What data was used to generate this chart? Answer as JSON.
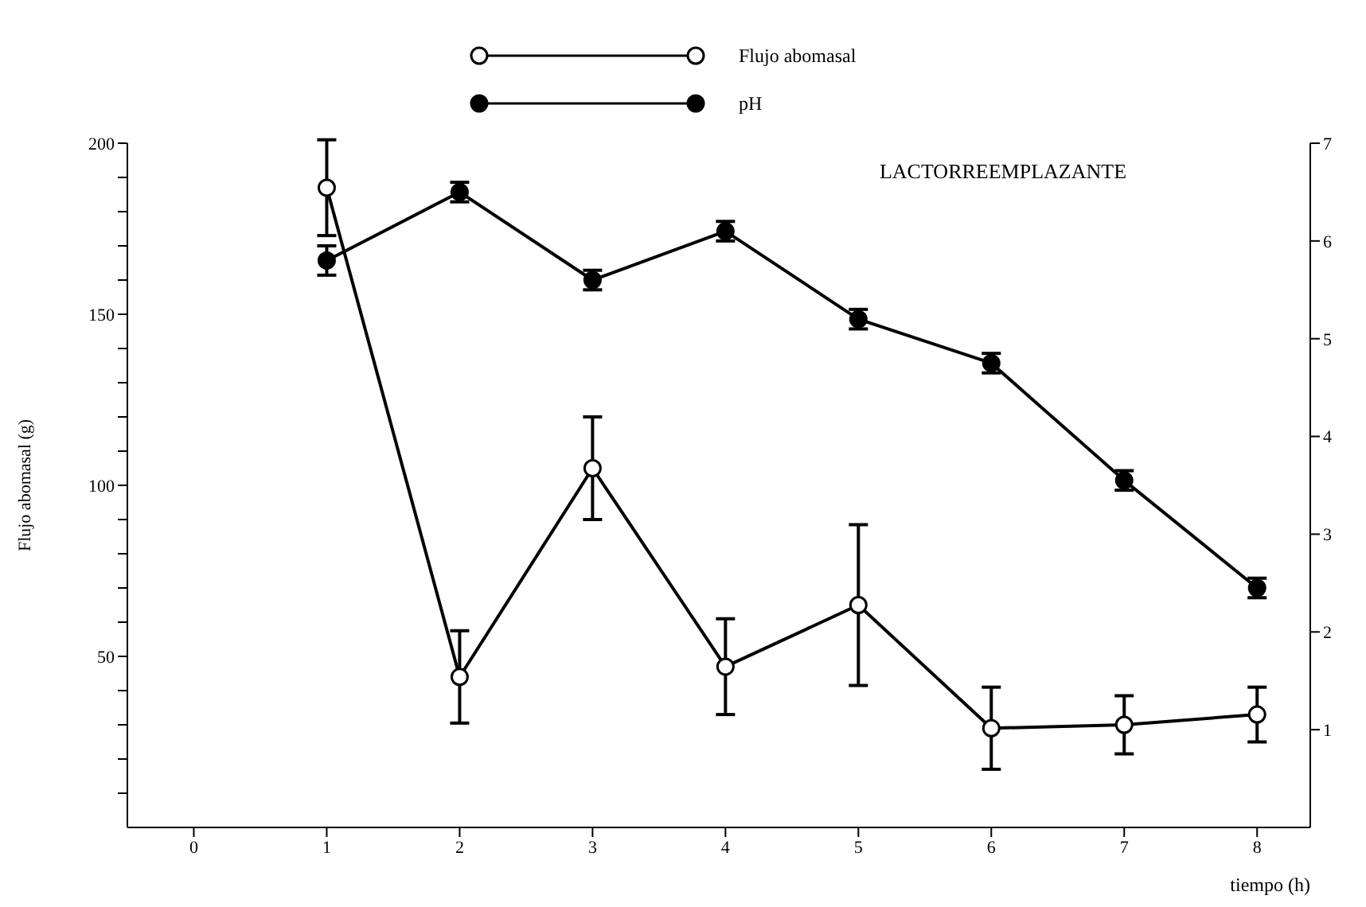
{
  "chart_data": {
    "type": "line",
    "title": "LACTORREEMPLAZANTE",
    "xlabel": "tiempo (h)",
    "ylabel": "Flujo abomasal (g)",
    "x": [
      1,
      2,
      3,
      4,
      5,
      6,
      7,
      8
    ],
    "series": [
      {
        "name": "Flujo abomasal",
        "color": "#000000",
        "values": [
          187,
          44,
          105,
          47,
          65,
          29,
          30,
          33
        ],
        "errors": [
          14,
          13.5,
          15,
          14,
          23.5,
          12,
          8.5,
          8
        ],
        "marker": "circle"
      },
      {
        "name": "pH",
        "color": "#000000",
        "axis": "y2",
        "values": [
          5.8,
          6.5,
          5.6,
          6.1,
          5.2,
          4.75,
          3.55,
          2.45
        ],
        "errors": [
          0.15,
          0.1,
          0.1,
          0.1,
          0.1,
          0.1,
          0.1,
          0.1
        ],
        "marker": "circle"
      }
    ],
    "xlim": [
      -0.5,
      8.4
    ],
    "xticks": [
      0,
      1,
      2,
      3,
      4,
      5,
      6,
      7,
      8
    ],
    "ylim": [
      0,
      200
    ],
    "yticks": [
      {
        "value": 10,
        "label": null
      },
      {
        "value": 20,
        "label": null
      },
      {
        "value": 30,
        "label": null
      },
      {
        "value": 40,
        "label": null
      },
      50,
      {
        "value": 60,
        "label": null
      },
      {
        "value": 70,
        "label": null
      },
      {
        "value": 80,
        "label": null
      },
      {
        "value": 90,
        "label": null
      },
      100,
      {
        "value": 110,
        "label": null
      },
      {
        "value": 120,
        "label": null
      },
      {
        "value": 130,
        "label": null
      },
      {
        "value": 140,
        "label": null
      },
      150,
      {
        "value": 160,
        "label": null
      },
      {
        "value": 170,
        "label": null
      },
      {
        "value": 180,
        "label": null
      },
      {
        "value": 190,
        "label": null
      },
      200
    ],
    "y2lim": [
      0,
      7
    ],
    "y2ticks": [
      1,
      2,
      3,
      4,
      5,
      6,
      7
    ],
    "grid": false,
    "legend": "top",
    "line_style": "solid"
  }
}
